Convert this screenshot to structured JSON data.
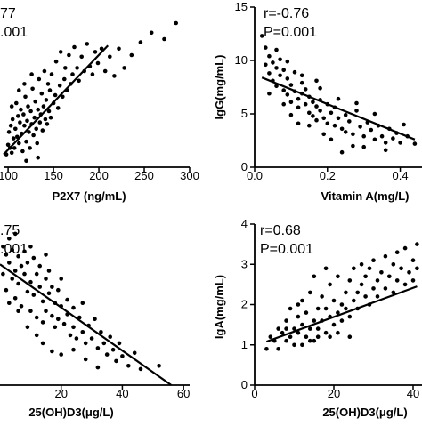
{
  "chart_data": [
    {
      "id": "panel-tl",
      "type": "scatter",
      "xlabel": "P2X7 (ng/mL)",
      "ylabel": "",
      "stats": [
        "77",
        ".001"
      ],
      "xlim": [
        95,
        300
      ],
      "ylim": [
        0,
        100
      ],
      "xticks": [
        100,
        150,
        200,
        250,
        300
      ],
      "xtick_labels": [
        "100",
        "150",
        "200",
        "250",
        "300"
      ],
      "yticks": [],
      "regression": {
        "x": [
          95,
          210
        ],
        "y": [
          8,
          76
        ]
      },
      "points": [
        [
          98,
          8
        ],
        [
          100,
          14
        ],
        [
          101,
          22
        ],
        [
          102,
          12
        ],
        [
          103,
          26
        ],
        [
          104,
          9
        ],
        [
          105,
          30
        ],
        [
          106,
          18
        ],
        [
          107,
          12
        ],
        [
          108,
          24
        ],
        [
          109,
          40
        ],
        [
          110,
          19
        ],
        [
          111,
          32
        ],
        [
          112,
          15
        ],
        [
          113,
          28
        ],
        [
          114,
          36
        ],
        [
          115,
          21
        ],
        [
          116,
          10
        ],
        [
          117,
          33
        ],
        [
          118,
          26
        ],
        [
          119,
          44
        ],
        [
          120,
          16
        ],
        [
          121,
          29
        ],
        [
          122,
          38
        ],
        [
          123,
          22
        ],
        [
          124,
          12
        ],
        [
          125,
          35
        ],
        [
          126,
          27
        ],
        [
          127,
          49
        ],
        [
          128,
          20
        ],
        [
          129,
          31
        ],
        [
          130,
          41
        ],
        [
          131,
          24
        ],
        [
          132,
          15
        ],
        [
          133,
          36
        ],
        [
          134,
          55
        ],
        [
          135,
          28
        ],
        [
          136,
          33
        ],
        [
          137,
          46
        ],
        [
          138,
          23
        ],
        [
          139,
          38
        ],
        [
          140,
          60
        ],
        [
          141,
          30
        ],
        [
          142,
          42
        ],
        [
          143,
          27
        ],
        [
          144,
          52
        ],
        [
          145,
          35
        ],
        [
          146,
          48
        ],
        [
          147,
          31
        ],
        [
          148,
          58
        ],
        [
          150,
          40
        ],
        [
          152,
          45
        ],
        [
          153,
          66
        ],
        [
          155,
          37
        ],
        [
          157,
          51
        ],
        [
          158,
          72
        ],
        [
          160,
          44
        ],
        [
          162,
          55
        ],
        [
          163,
          62
        ],
        [
          165,
          48
        ],
        [
          167,
          70
        ],
        [
          169,
          52
        ],
        [
          171,
          58
        ],
        [
          173,
          75
        ],
        [
          176,
          62
        ],
        [
          178,
          54
        ],
        [
          181,
          69
        ],
        [
          184,
          60
        ],
        [
          187,
          77
        ],
        [
          190,
          63
        ],
        [
          193,
          58
        ],
        [
          196,
          72
        ],
        [
          199,
          65
        ],
        [
          203,
          74
        ],
        [
          207,
          60
        ],
        [
          212,
          69
        ],
        [
          217,
          57
        ],
        [
          222,
          74
        ],
        [
          228,
          62
        ],
        [
          236,
          70
        ],
        [
          246,
          78
        ],
        [
          258,
          84
        ],
        [
          272,
          80
        ],
        [
          285,
          90
        ],
        [
          112,
          48
        ],
        [
          118,
          52
        ],
        [
          126,
          58
        ],
        [
          133,
          6
        ],
        [
          120,
          4
        ],
        [
          104,
          38
        ]
      ]
    },
    {
      "id": "panel-tr",
      "type": "scatter",
      "xlabel": "Vitamin A(mg/L)",
      "ylabel": "IgG(mg/mL)",
      "stats": [
        "r=-0.76",
        "P=0.001"
      ],
      "xlim": [
        0,
        0.45
      ],
      "ylim": [
        0,
        15
      ],
      "xticks": [
        0,
        0.2,
        0.4
      ],
      "xtick_labels": [
        "0.0",
        "0.2",
        "0.4"
      ],
      "yticks": [
        0,
        5,
        10,
        15
      ],
      "ytick_labels": [
        "0",
        "5",
        "10",
        "15"
      ],
      "regression": {
        "x": [
          0.02,
          0.44
        ],
        "y": [
          8.4,
          2.6
        ]
      },
      "points": [
        [
          0.02,
          12.3
        ],
        [
          0.03,
          11.2
        ],
        [
          0.03,
          9.6
        ],
        [
          0.04,
          10.4
        ],
        [
          0.04,
          8.8
        ],
        [
          0.05,
          9.8
        ],
        [
          0.05,
          8.1
        ],
        [
          0.06,
          9.3
        ],
        [
          0.06,
          7.6
        ],
        [
          0.07,
          10.1
        ],
        [
          0.07,
          8.6
        ],
        [
          0.08,
          7.2
        ],
        [
          0.08,
          9.1
        ],
        [
          0.09,
          6.8
        ],
        [
          0.09,
          8.3
        ],
        [
          0.1,
          7.7
        ],
        [
          0.1,
          6.1
        ],
        [
          0.11,
          8.9
        ],
        [
          0.11,
          7.1
        ],
        [
          0.12,
          6.4
        ],
        [
          0.12,
          5.6
        ],
        [
          0.13,
          7.9
        ],
        [
          0.13,
          6.9
        ],
        [
          0.14,
          5.9
        ],
        [
          0.14,
          7.3
        ],
        [
          0.15,
          5.1
        ],
        [
          0.15,
          6.6
        ],
        [
          0.16,
          4.8
        ],
        [
          0.16,
          6.1
        ],
        [
          0.17,
          5.7
        ],
        [
          0.17,
          4.4
        ],
        [
          0.18,
          6.3
        ],
        [
          0.18,
          5.3
        ],
        [
          0.19,
          4.6
        ],
        [
          0.2,
          5.9
        ],
        [
          0.2,
          4.1
        ],
        [
          0.21,
          5.1
        ],
        [
          0.22,
          3.9
        ],
        [
          0.22,
          5.6
        ],
        [
          0.23,
          4.6
        ],
        [
          0.24,
          3.6
        ],
        [
          0.25,
          4.9
        ],
        [
          0.25,
          3.3
        ],
        [
          0.26,
          4.3
        ],
        [
          0.27,
          3.1
        ],
        [
          0.28,
          5.3
        ],
        [
          0.29,
          3.8
        ],
        [
          0.3,
          2.9
        ],
        [
          0.31,
          4.2
        ],
        [
          0.32,
          3.5
        ],
        [
          0.33,
          2.6
        ],
        [
          0.34,
          3.9
        ],
        [
          0.35,
          2.9
        ],
        [
          0.36,
          2.3
        ],
        [
          0.37,
          3.6
        ],
        [
          0.38,
          2.7
        ],
        [
          0.39,
          3.2
        ],
        [
          0.4,
          2.3
        ],
        [
          0.42,
          2.9
        ],
        [
          0.44,
          2.2
        ],
        [
          0.06,
          11.0
        ],
        [
          0.09,
          9.9
        ],
        [
          0.13,
          8.6
        ],
        [
          0.18,
          7.4
        ],
        [
          0.23,
          6.4
        ],
        [
          0.28,
          6.0
        ],
        [
          0.33,
          5.0
        ],
        [
          0.1,
          4.9
        ],
        [
          0.15,
          3.9
        ],
        [
          0.21,
          2.6
        ],
        [
          0.27,
          2.0
        ],
        [
          0.36,
          1.6
        ],
        [
          0.04,
          6.9
        ],
        [
          0.08,
          5.9
        ],
        [
          0.12,
          4.1
        ],
        [
          0.19,
          3.1
        ],
        [
          0.24,
          1.4
        ],
        [
          0.3,
          1.9
        ],
        [
          0.41,
          4.0
        ],
        [
          0.17,
          8.1
        ]
      ]
    },
    {
      "id": "panel-bl",
      "type": "scatter",
      "xlabel": "25(OH)D3(μg/L)",
      "ylabel": "",
      "stats": [
        ".75",
        ".001"
      ],
      "xlim": [
        0,
        62
      ],
      "ylim": [
        0,
        10
      ],
      "xticks": [
        20,
        40,
        60
      ],
      "xtick_labels": [
        "20",
        "40",
        "60"
      ],
      "yticks": [],
      "regression": {
        "x": [
          0,
          56
        ],
        "y": [
          7.5,
          0
        ]
      },
      "points": [
        [
          1,
          8.6
        ],
        [
          1,
          6.9
        ],
        [
          2,
          8.1
        ],
        [
          2,
          5.9
        ],
        [
          3,
          7.6
        ],
        [
          3,
          9.1
        ],
        [
          4,
          6.6
        ],
        [
          4,
          8.4
        ],
        [
          5,
          7.1
        ],
        [
          5,
          5.4
        ],
        [
          6,
          8.0
        ],
        [
          6,
          6.3
        ],
        [
          7,
          7.4
        ],
        [
          7,
          4.9
        ],
        [
          8,
          6.9
        ],
        [
          8,
          8.3
        ],
        [
          9,
          5.8
        ],
        [
          9,
          7.6
        ],
        [
          10,
          6.4
        ],
        [
          10,
          4.6
        ],
        [
          11,
          7.9
        ],
        [
          11,
          5.6
        ],
        [
          12,
          6.9
        ],
        [
          12,
          4.2
        ],
        [
          13,
          6.1
        ],
        [
          13,
          7.4
        ],
        [
          14,
          5.2
        ],
        [
          14,
          3.9
        ],
        [
          15,
          6.6
        ],
        [
          15,
          4.6
        ],
        [
          16,
          5.7
        ],
        [
          16,
          7.1
        ],
        [
          17,
          4.3
        ],
        [
          17,
          6.1
        ],
        [
          18,
          5.1
        ],
        [
          18,
          3.6
        ],
        [
          19,
          5.9
        ],
        [
          19,
          4.1
        ],
        [
          20,
          4.9
        ],
        [
          20,
          6.6
        ],
        [
          21,
          3.8
        ],
        [
          22,
          5.3
        ],
        [
          22,
          4.4
        ],
        [
          23,
          3.1
        ],
        [
          24,
          4.8
        ],
        [
          24,
          3.6
        ],
        [
          25,
          2.9
        ],
        [
          26,
          4.2
        ],
        [
          27,
          3.3
        ],
        [
          27,
          5.1
        ],
        [
          28,
          2.6
        ],
        [
          29,
          3.7
        ],
        [
          30,
          2.9
        ],
        [
          31,
          4.1
        ],
        [
          32,
          2.3
        ],
        [
          33,
          3.3
        ],
        [
          34,
          2.6
        ],
        [
          35,
          1.9
        ],
        [
          36,
          3.0
        ],
        [
          37,
          2.2
        ],
        [
          38,
          1.5
        ],
        [
          39,
          2.6
        ],
        [
          40,
          1.8
        ],
        [
          42,
          1.2
        ],
        [
          44,
          2.0
        ],
        [
          46,
          1.0
        ],
        [
          52,
          1.2
        ],
        [
          3,
          5.1
        ],
        [
          6,
          4.6
        ],
        [
          9,
          3.6
        ],
        [
          12,
          3.1
        ],
        [
          14,
          2.6
        ],
        [
          17,
          2.1
        ],
        [
          20,
          1.9
        ],
        [
          24,
          2.2
        ],
        [
          28,
          1.6
        ],
        [
          32,
          1.1
        ],
        [
          10,
          8.6
        ],
        [
          15,
          8.1
        ],
        [
          5,
          9.4
        ]
      ]
    },
    {
      "id": "panel-br",
      "type": "scatter",
      "xlabel": "25(OH)D3(μg/L)",
      "ylabel": "IgA(mg/mL)",
      "stats": [
        "r=0.68",
        "P=0.001"
      ],
      "xlim": [
        0,
        40
      ],
      "ylim": [
        0,
        4
      ],
      "xticks": [
        0,
        20,
        40
      ],
      "xtick_labels": [
        "0",
        "20",
        "40"
      ],
      "yticks": [
        0,
        1,
        2,
        3,
        4
      ],
      "ytick_labels": [
        "0",
        "1",
        "2",
        "3",
        "4"
      ],
      "regression": {
        "x": [
          3,
          41
        ],
        "y": [
          1.08,
          2.45
        ]
      },
      "points": [
        [
          3,
          0.9
        ],
        [
          4,
          1.2
        ],
        [
          5,
          1.1
        ],
        [
          6,
          1.4
        ],
        [
          6,
          0.9
        ],
        [
          7,
          1.3
        ],
        [
          8,
          1.1
        ],
        [
          8,
          1.6
        ],
        [
          9,
          1.2
        ],
        [
          9,
          1.9
        ],
        [
          10,
          1.4
        ],
        [
          10,
          1.0
        ],
        [
          11,
          1.7
        ],
        [
          11,
          1.3
        ],
        [
          12,
          1.5
        ],
        [
          12,
          2.1
        ],
        [
          13,
          1.2
        ],
        [
          13,
          1.8
        ],
        [
          14,
          1.4
        ],
        [
          14,
          2.3
        ],
        [
          15,
          1.6
        ],
        [
          15,
          1.1
        ],
        [
          16,
          1.9
        ],
        [
          16,
          1.4
        ],
        [
          17,
          2.2
        ],
        [
          17,
          1.6
        ],
        [
          18,
          1.3
        ],
        [
          18,
          1.9
        ],
        [
          19,
          2.5
        ],
        [
          19,
          1.7
        ],
        [
          20,
          1.5
        ],
        [
          20,
          2.1
        ],
        [
          21,
          1.8
        ],
        [
          21,
          2.7
        ],
        [
          22,
          2.0
        ],
        [
          22,
          1.6
        ],
        [
          23,
          2.3
        ],
        [
          23,
          1.9
        ],
        [
          24,
          2.6
        ],
        [
          24,
          1.7
        ],
        [
          25,
          2.1
        ],
        [
          25,
          2.9
        ],
        [
          26,
          2.3
        ],
        [
          26,
          1.9
        ],
        [
          27,
          2.5
        ],
        [
          27,
          3.0
        ],
        [
          28,
          2.2
        ],
        [
          28,
          2.7
        ],
        [
          29,
          2.0
        ],
        [
          29,
          2.9
        ],
        [
          30,
          2.4
        ],
        [
          30,
          3.1
        ],
        [
          31,
          2.6
        ],
        [
          31,
          2.2
        ],
        [
          32,
          2.8
        ],
        [
          33,
          2.4
        ],
        [
          33,
          3.2
        ],
        [
          34,
          2.7
        ],
        [
          35,
          2.3
        ],
        [
          35,
          3.0
        ],
        [
          36,
          2.6
        ],
        [
          36,
          3.3
        ],
        [
          37,
          2.9
        ],
        [
          38,
          2.5
        ],
        [
          38,
          3.4
        ],
        [
          39,
          2.8
        ],
        [
          40,
          3.1
        ],
        [
          40,
          2.6
        ],
        [
          41,
          3.5
        ],
        [
          41,
          2.9
        ],
        [
          12,
          1.0
        ],
        [
          15,
          2.7
        ],
        [
          18,
          2.9
        ],
        [
          21,
          1.3
        ],
        [
          24,
          1.2
        ],
        [
          14,
          1.1
        ],
        [
          16,
          1.2
        ],
        [
          11,
          2.0
        ],
        [
          8,
          1.4
        ],
        [
          19,
          1.2
        ]
      ]
    }
  ]
}
